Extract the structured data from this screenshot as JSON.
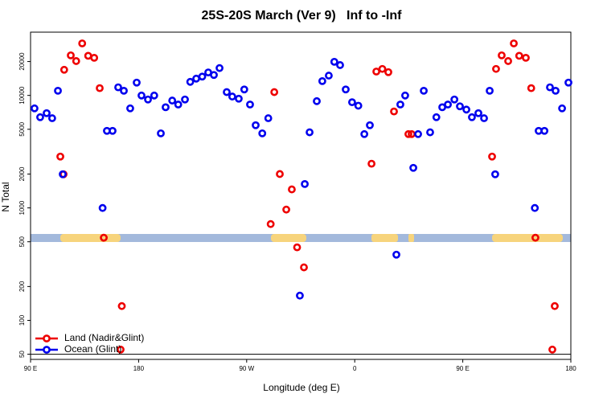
{
  "chart_data": {
    "type": "scatter",
    "title": "25S-20S March (Ver 9)   Inf to -Inf",
    "x_label": "Longitude (deg E)",
    "y_label": "N Total",
    "log_y": true,
    "xlim": [
      90,
      540
    ],
    "ylim": [
      45,
      36500
    ],
    "xticks": [
      {
        "value": 90,
        "label": "90 E"
      },
      180,
      {
        "value": 270,
        "label": "90 W"
      },
      {
        "value": 360,
        "label": "0"
      },
      {
        "value": 450,
        "label": "90 E"
      },
      {
        "value": 540,
        "label": "180"
      }
    ],
    "yticks": [
      50,
      100,
      200,
      500,
      1000,
      2000,
      5000,
      10000,
      20000
    ],
    "reference_line": 50,
    "legend": "bottom-left",
    "series": [
      {
        "name": "Land (Nadir&Glint)",
        "color": "#ee0000",
        "x": [
          114.8,
          117.5,
          118,
          123.5,
          128,
          133,
          138,
          143,
          147.6,
          151,
          166,
          165,
          290,
          293,
          297.6,
          303,
          307.6,
          312,
          317.7,
          374,
          378,
          383,
          388,
          392.7,
          404.7,
          407.4,
          474.4,
          477.7,
          482.4,
          487.8,
          492.5,
          497,
          502.5,
          507,
          510.5,
          526.6,
          524.6
        ],
        "values": [
          2860,
          1990,
          16900,
          22700,
          20200,
          29000,
          22500,
          21600,
          11600,
          543,
          134,
          55,
          718,
          10700,
          2000,
          966,
          1460,
          446,
          296,
          2470,
          16300,
          17200,
          16100,
          7200,
          4530,
          4530,
          2860,
          17200,
          22700,
          20200,
          29000,
          22500,
          21600,
          11600,
          543,
          134,
          55
        ]
      },
      {
        "name": "Ocean (Glint)",
        "color": "#0000ee",
        "x": [
          93.3,
          98,
          103.4,
          108,
          112.8,
          116.8,
          150,
          153.6,
          158.3,
          163,
          167.7,
          173,
          178.4,
          182.4,
          187.8,
          193,
          198.5,
          202.5,
          208,
          213,
          218.6,
          223,
          228,
          233,
          238,
          242.7,
          247.4,
          253.4,
          258,
          263.4,
          268,
          272.8,
          277.5,
          283,
          288,
          318.4,
          314.3,
          322.4,
          328.4,
          333,
          338.4,
          343,
          347.8,
          352.5,
          357.8,
          363,
          368,
          372.6,
          394.7,
          398,
          402,
          408.8,
          412.8,
          417.5,
          422.8,
          428,
          432.9,
          437.6,
          443,
          447.6,
          453,
          457.6,
          463,
          467.7,
          472.4,
          477,
          510,
          513.2,
          518,
          522.6,
          527.3,
          532.7,
          538
        ],
        "values": [
          7670,
          6400,
          6950,
          6270,
          11000,
          1990,
          998,
          4840,
          4840,
          11800,
          11000,
          7670,
          13000,
          9980,
          9200,
          9980,
          4600,
          7850,
          9000,
          8300,
          9200,
          13200,
          14100,
          14700,
          16000,
          15200,
          17500,
          10700,
          9770,
          9350,
          11300,
          8300,
          5430,
          4600,
          6270,
          1630,
          166,
          4700,
          8890,
          13400,
          15000,
          19900,
          18600,
          11300,
          8700,
          8100,
          4530,
          5430,
          384,
          8300,
          9980,
          2270,
          4530,
          11000,
          4700,
          6400,
          7850,
          8300,
          9200,
          8000,
          7480,
          6400,
          6950,
          6270,
          11000,
          1990,
          998,
          4840,
          4840,
          11800,
          11000,
          7670,
          13000
        ]
      }
    ]
  }
}
